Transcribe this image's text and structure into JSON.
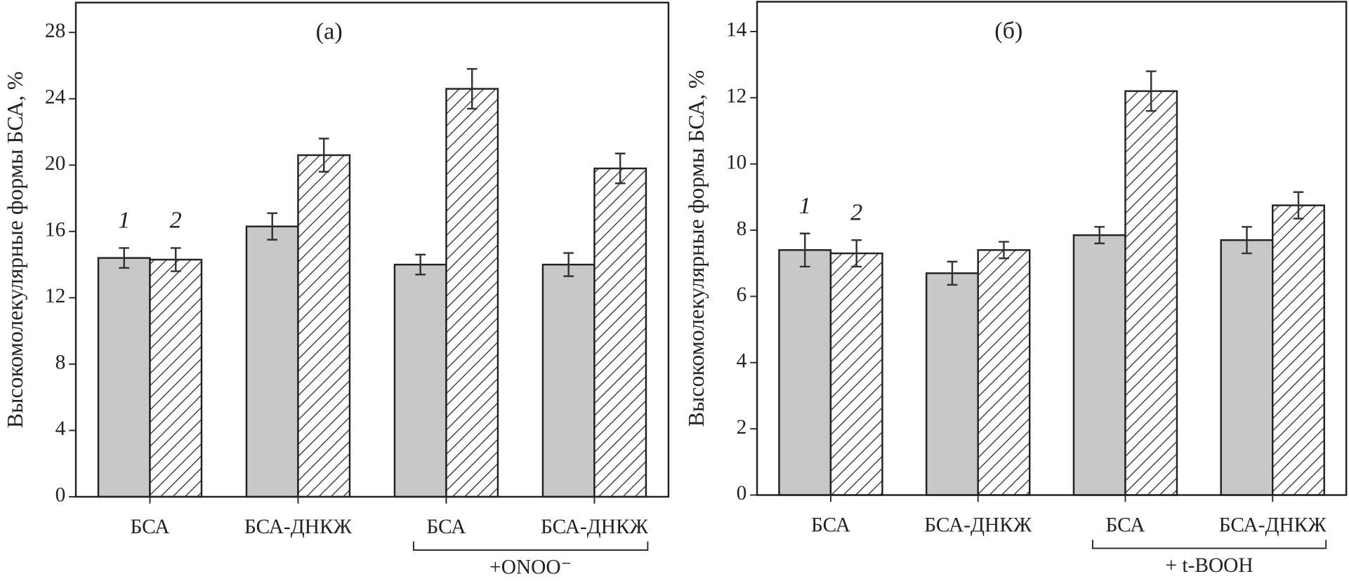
{
  "chart_data": [
    {
      "type": "bar",
      "title": "(а)",
      "ylabel": "Высокомолекулярные формы БСА, %",
      "categories": [
        "БСА",
        "БСА-ДНКЖ",
        "БСА",
        "БСА-ДНКЖ"
      ],
      "series": [
        {
          "name": "1",
          "color": "#c8c8c8",
          "hatch": false,
          "values": [
            14.4,
            16.3,
            14.0,
            14.0
          ],
          "errors": [
            0.6,
            0.8,
            0.6,
            0.7
          ]
        },
        {
          "name": "2",
          "color": "#ffffff",
          "hatch": true,
          "values": [
            14.3,
            20.6,
            24.6,
            19.8
          ],
          "errors": [
            0.7,
            1.0,
            1.2,
            0.9
          ]
        }
      ],
      "group_label": "+ONOO⁻",
      "ylim": [
        0,
        29.8
      ],
      "yticks": [
        0,
        4,
        8,
        12,
        16,
        20,
        24,
        28
      ]
    },
    {
      "type": "bar",
      "title": "(б)",
      "ylabel": "Высокомолекулярные формы БСА, %",
      "categories": [
        "БСА",
        "БСА-ДНКЖ",
        "БСА",
        "БСА-ДНКЖ"
      ],
      "series": [
        {
          "name": "1",
          "color": "#c8c8c8",
          "hatch": false,
          "values": [
            7.4,
            6.7,
            7.85,
            7.7
          ],
          "errors": [
            0.5,
            0.35,
            0.25,
            0.4
          ]
        },
        {
          "name": "2",
          "color": "#ffffff",
          "hatch": true,
          "values": [
            7.3,
            7.4,
            12.2,
            8.75
          ],
          "errors": [
            0.4,
            0.25,
            0.6,
            0.4
          ]
        }
      ],
      "group_label": "+ t-BOOH",
      "ylim": [
        0,
        14.9
      ],
      "yticks": [
        0,
        2,
        4,
        6,
        8,
        10,
        12,
        14
      ]
    }
  ]
}
